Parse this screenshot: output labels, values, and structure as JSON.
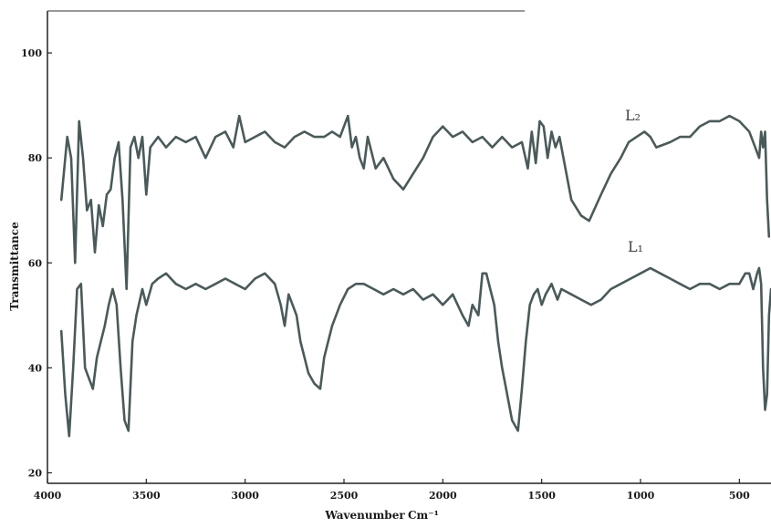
{
  "chart_data": {
    "type": "line",
    "xlabel": "Wavenumber",
    "xlabel_unit": "Cm⁻¹",
    "ylabel": "Transmittance",
    "xlim": [
      4000,
      340
    ],
    "ylim": [
      18,
      108
    ],
    "x_ticks": [
      4000,
      3500,
      3000,
      2500,
      2000,
      1500,
      1000,
      500
    ],
    "y_ticks": [
      20,
      40,
      60,
      80,
      100
    ],
    "x_tick_labels": [
      "4000",
      "3500",
      "3000",
      "2500",
      "2000",
      "1500",
      "1000",
      "500"
    ],
    "y_tick_labels": [
      "20",
      "40",
      "60",
      "80",
      "100"
    ],
    "line_color": "#4a5a5a",
    "grid": false,
    "series": [
      {
        "name": "L2",
        "label": "L₂",
        "points": [
          [
            3930,
            72
          ],
          [
            3900,
            84
          ],
          [
            3880,
            80
          ],
          [
            3860,
            60
          ],
          [
            3840,
            87
          ],
          [
            3820,
            80
          ],
          [
            3800,
            70
          ],
          [
            3780,
            72
          ],
          [
            3760,
            62
          ],
          [
            3740,
            71
          ],
          [
            3720,
            67
          ],
          [
            3700,
            73
          ],
          [
            3680,
            74
          ],
          [
            3660,
            80
          ],
          [
            3640,
            83
          ],
          [
            3620,
            72
          ],
          [
            3600,
            55
          ],
          [
            3580,
            82
          ],
          [
            3560,
            84
          ],
          [
            3540,
            80
          ],
          [
            3520,
            84
          ],
          [
            3500,
            73
          ],
          [
            3480,
            82
          ],
          [
            3440,
            84
          ],
          [
            3400,
            82
          ],
          [
            3350,
            84
          ],
          [
            3300,
            83
          ],
          [
            3250,
            84
          ],
          [
            3200,
            80
          ],
          [
            3150,
            84
          ],
          [
            3100,
            85
          ],
          [
            3060,
            82
          ],
          [
            3030,
            88
          ],
          [
            3000,
            83
          ],
          [
            2950,
            84
          ],
          [
            2900,
            85
          ],
          [
            2850,
            83
          ],
          [
            2800,
            82
          ],
          [
            2750,
            84
          ],
          [
            2700,
            85
          ],
          [
            2650,
            84
          ],
          [
            2600,
            84
          ],
          [
            2560,
            85
          ],
          [
            2520,
            84
          ],
          [
            2480,
            88
          ],
          [
            2460,
            82
          ],
          [
            2440,
            84
          ],
          [
            2420,
            80
          ],
          [
            2400,
            78
          ],
          [
            2380,
            84
          ],
          [
            2340,
            78
          ],
          [
            2300,
            80
          ],
          [
            2250,
            76
          ],
          [
            2200,
            74
          ],
          [
            2150,
            77
          ],
          [
            2100,
            80
          ],
          [
            2050,
            84
          ],
          [
            2000,
            86
          ],
          [
            1950,
            84
          ],
          [
            1900,
            85
          ],
          [
            1850,
            83
          ],
          [
            1800,
            84
          ],
          [
            1750,
            82
          ],
          [
            1700,
            84
          ],
          [
            1650,
            82
          ],
          [
            1600,
            83
          ],
          [
            1570,
            78
          ],
          [
            1550,
            85
          ],
          [
            1530,
            79
          ],
          [
            1510,
            87
          ],
          [
            1490,
            86
          ],
          [
            1470,
            80
          ],
          [
            1450,
            85
          ],
          [
            1430,
            82
          ],
          [
            1410,
            84
          ],
          [
            1380,
            78
          ],
          [
            1350,
            72
          ],
          [
            1300,
            69
          ],
          [
            1260,
            68
          ],
          [
            1200,
            73
          ],
          [
            1150,
            77
          ],
          [
            1100,
            80
          ],
          [
            1060,
            83
          ],
          [
            1020,
            84
          ],
          [
            980,
            85
          ],
          [
            950,
            84
          ],
          [
            920,
            82
          ],
          [
            850,
            83
          ],
          [
            800,
            84
          ],
          [
            750,
            84
          ],
          [
            700,
            86
          ],
          [
            650,
            87
          ],
          [
            600,
            87
          ],
          [
            550,
            88
          ],
          [
            500,
            87
          ],
          [
            450,
            85
          ],
          [
            420,
            82
          ],
          [
            400,
            80
          ],
          [
            390,
            85
          ],
          [
            380,
            82
          ],
          [
            370,
            85
          ],
          [
            360,
            72
          ],
          [
            350,
            65
          ]
        ]
      },
      {
        "name": "L1",
        "label": "L₁",
        "points": [
          [
            3930,
            47
          ],
          [
            3910,
            35
          ],
          [
            3890,
            27
          ],
          [
            3870,
            40
          ],
          [
            3850,
            55
          ],
          [
            3830,
            56
          ],
          [
            3810,
            40
          ],
          [
            3790,
            38
          ],
          [
            3770,
            36
          ],
          [
            3750,
            42
          ],
          [
            3730,
            45
          ],
          [
            3710,
            48
          ],
          [
            3690,
            52
          ],
          [
            3670,
            55
          ],
          [
            3650,
            52
          ],
          [
            3630,
            40
          ],
          [
            3610,
            30
          ],
          [
            3590,
            28
          ],
          [
            3570,
            45
          ],
          [
            3550,
            50
          ],
          [
            3520,
            55
          ],
          [
            3500,
            52
          ],
          [
            3470,
            56
          ],
          [
            3440,
            57
          ],
          [
            3400,
            58
          ],
          [
            3350,
            56
          ],
          [
            3300,
            55
          ],
          [
            3250,
            56
          ],
          [
            3200,
            55
          ],
          [
            3150,
            56
          ],
          [
            3100,
            57
          ],
          [
            3050,
            56
          ],
          [
            3000,
            55
          ],
          [
            2950,
            57
          ],
          [
            2900,
            58
          ],
          [
            2850,
            56
          ],
          [
            2820,
            52
          ],
          [
            2800,
            48
          ],
          [
            2780,
            54
          ],
          [
            2760,
            52
          ],
          [
            2740,
            50
          ],
          [
            2720,
            45
          ],
          [
            2700,
            42
          ],
          [
            2680,
            39
          ],
          [
            2650,
            37
          ],
          [
            2620,
            36
          ],
          [
            2600,
            42
          ],
          [
            2560,
            48
          ],
          [
            2520,
            52
          ],
          [
            2480,
            55
          ],
          [
            2440,
            56
          ],
          [
            2400,
            56
          ],
          [
            2350,
            55
          ],
          [
            2300,
            54
          ],
          [
            2250,
            55
          ],
          [
            2200,
            54
          ],
          [
            2150,
            55
          ],
          [
            2100,
            53
          ],
          [
            2050,
            54
          ],
          [
            2000,
            52
          ],
          [
            1950,
            54
          ],
          [
            1900,
            50
          ],
          [
            1870,
            48
          ],
          [
            1850,
            52
          ],
          [
            1820,
            50
          ],
          [
            1800,
            58
          ],
          [
            1780,
            58
          ],
          [
            1760,
            55
          ],
          [
            1740,
            52
          ],
          [
            1720,
            45
          ],
          [
            1700,
            40
          ],
          [
            1680,
            36
          ],
          [
            1650,
            30
          ],
          [
            1620,
            28
          ],
          [
            1600,
            36
          ],
          [
            1580,
            45
          ],
          [
            1560,
            52
          ],
          [
            1540,
            54
          ],
          [
            1520,
            55
          ],
          [
            1500,
            52
          ],
          [
            1480,
            54
          ],
          [
            1450,
            56
          ],
          [
            1420,
            53
          ],
          [
            1400,
            55
          ],
          [
            1350,
            54
          ],
          [
            1300,
            53
          ],
          [
            1250,
            52
          ],
          [
            1200,
            53
          ],
          [
            1150,
            55
          ],
          [
            1100,
            56
          ],
          [
            1050,
            57
          ],
          [
            1000,
            58
          ],
          [
            950,
            59
          ],
          [
            900,
            58
          ],
          [
            850,
            57
          ],
          [
            800,
            56
          ],
          [
            750,
            55
          ],
          [
            700,
            56
          ],
          [
            650,
            56
          ],
          [
            600,
            55
          ],
          [
            550,
            56
          ],
          [
            500,
            56
          ],
          [
            470,
            58
          ],
          [
            450,
            58
          ],
          [
            430,
            55
          ],
          [
            410,
            58
          ],
          [
            400,
            59
          ],
          [
            390,
            56
          ],
          [
            380,
            40
          ],
          [
            370,
            32
          ],
          [
            360,
            35
          ],
          [
            350,
            50
          ],
          [
            340,
            55
          ]
        ]
      }
    ]
  }
}
